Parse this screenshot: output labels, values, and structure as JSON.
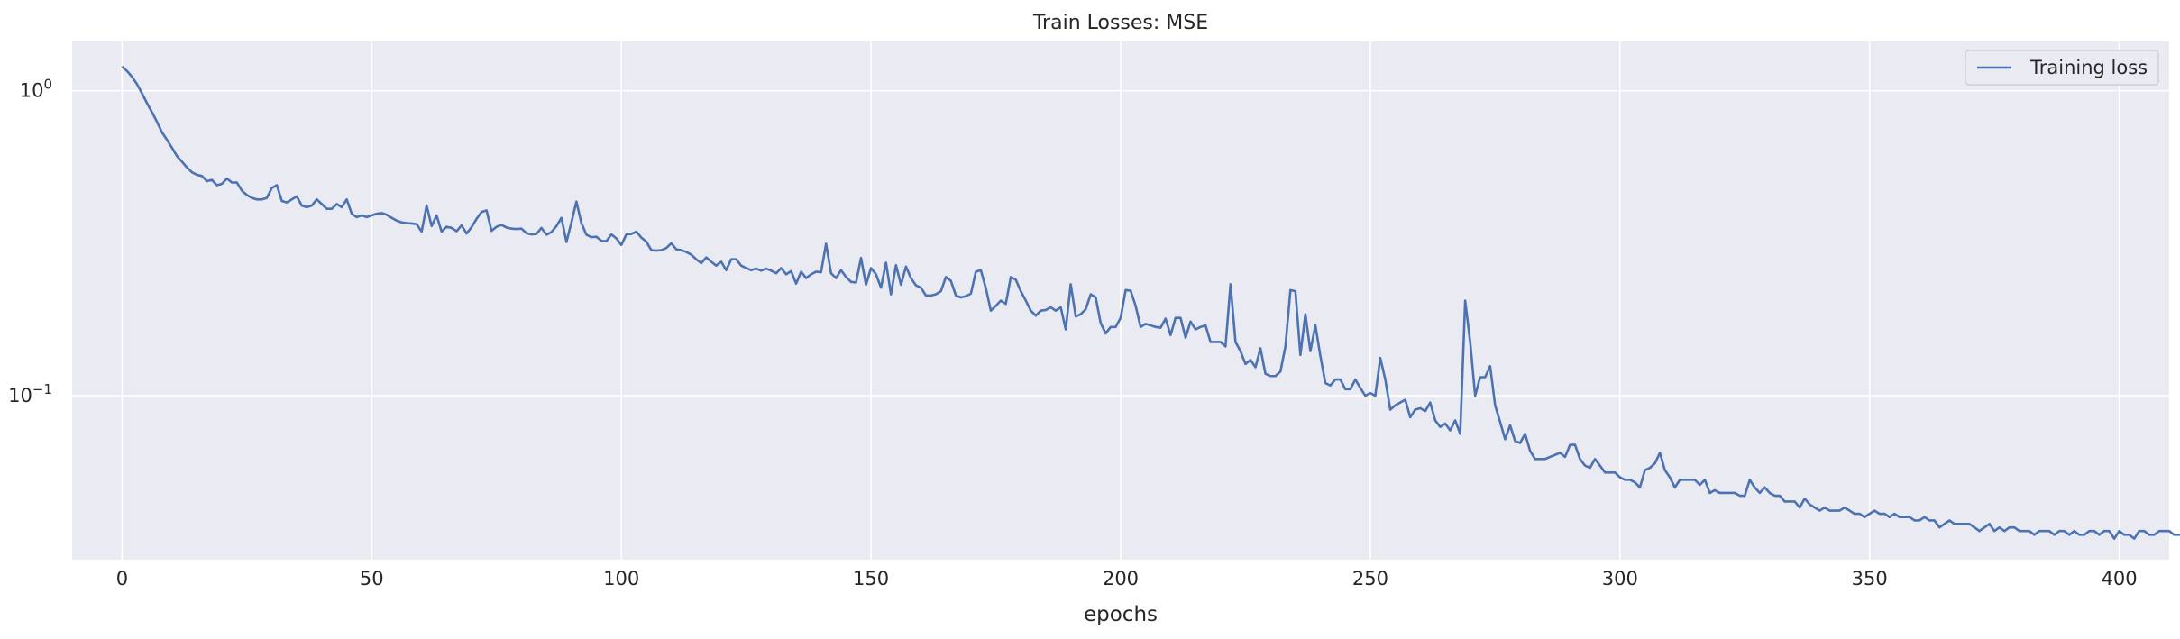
{
  "chart_data": {
    "type": "line",
    "title": "Train Losses:  MSE",
    "xlabel": "epochs",
    "ylabel": "",
    "xlim": [
      -10,
      410
    ],
    "ylim": [
      0.029,
      1.45
    ],
    "yscale": "log",
    "grid": true,
    "legend_position": "top-right",
    "x_ticks": [
      0,
      50,
      100,
      150,
      200,
      250,
      300,
      350,
      400
    ],
    "x_tick_labels": [
      "0",
      "50",
      "100",
      "150",
      "200",
      "250",
      "300",
      "350",
      "400"
    ],
    "y_ticks": [
      1,
      0.1
    ],
    "y_tick_labels": [
      {
        "base": "10",
        "exp": "0"
      },
      {
        "base": "10",
        "exp": "−1"
      }
    ],
    "colors": {
      "background": "#eaeaf2",
      "grid": "#ffffff",
      "line": "#4c72b0",
      "text": "#262626"
    },
    "series": [
      {
        "name": "Training loss",
        "x_start": 0,
        "x_step": 1,
        "values": [
          1.2,
          1.16,
          1.11,
          1.05,
          0.98,
          0.91,
          0.85,
          0.79,
          0.73,
          0.69,
          0.65,
          0.61,
          0.585,
          0.56,
          0.54,
          0.53,
          0.525,
          0.505,
          0.51,
          0.49,
          0.495,
          0.515,
          0.5,
          0.5,
          0.47,
          0.455,
          0.445,
          0.44,
          0.44,
          0.445,
          0.48,
          0.49,
          0.435,
          0.43,
          0.44,
          0.45,
          0.42,
          0.415,
          0.42,
          0.44,
          0.425,
          0.41,
          0.41,
          0.425,
          0.415,
          0.44,
          0.395,
          0.385,
          0.39,
          0.385,
          0.39,
          0.395,
          0.397,
          0.392,
          0.383,
          0.375,
          0.37,
          0.368,
          0.367,
          0.365,
          0.345,
          0.42,
          0.36,
          0.39,
          0.345,
          0.358,
          0.355,
          0.346,
          0.362,
          0.34,
          0.357,
          0.38,
          0.4,
          0.405,
          0.347,
          0.358,
          0.363,
          0.356,
          0.353,
          0.352,
          0.353,
          0.341,
          0.338,
          0.339,
          0.355,
          0.337,
          0.344,
          0.36,
          0.383,
          0.319,
          0.37,
          0.433,
          0.368,
          0.337,
          0.331,
          0.332,
          0.322,
          0.321,
          0.338,
          0.328,
          0.312,
          0.338,
          0.339,
          0.345,
          0.33,
          0.32,
          0.3,
          0.299,
          0.3,
          0.305,
          0.316,
          0.302,
          0.3,
          0.296,
          0.29,
          0.28,
          0.272,
          0.284,
          0.275,
          0.267,
          0.275,
          0.258,
          0.28,
          0.28,
          0.267,
          0.262,
          0.258,
          0.261,
          0.257,
          0.261,
          0.257,
          0.252,
          0.262,
          0.25,
          0.256,
          0.233,
          0.255,
          0.243,
          0.25,
          0.255,
          0.254,
          0.315,
          0.252,
          0.243,
          0.258,
          0.245,
          0.236,
          0.235,
          0.283,
          0.231,
          0.262,
          0.25,
          0.226,
          0.273,
          0.215,
          0.268,
          0.231,
          0.265,
          0.243,
          0.23,
          0.226,
          0.213,
          0.213,
          0.215,
          0.22,
          0.245,
          0.238,
          0.213,
          0.21,
          0.212,
          0.216,
          0.255,
          0.258,
          0.225,
          0.19,
          0.197,
          0.205,
          0.2,
          0.245,
          0.24,
          0.22,
          0.205,
          0.19,
          0.183,
          0.19,
          0.191,
          0.195,
          0.19,
          0.195,
          0.165,
          0.232,
          0.182,
          0.185,
          0.192,
          0.215,
          0.21,
          0.173,
          0.16,
          0.168,
          0.168,
          0.18,
          0.222,
          0.221,
          0.197,
          0.168,
          0.172,
          0.17,
          0.168,
          0.167,
          0.179,
          0.158,
          0.18,
          0.18,
          0.155,
          0.175,
          0.165,
          0.168,
          0.17,
          0.15,
          0.15,
          0.15,
          0.145,
          0.232,
          0.15,
          0.14,
          0.127,
          0.131,
          0.124,
          0.143,
          0.118,
          0.116,
          0.116,
          0.12,
          0.145,
          0.222,
          0.22,
          0.136,
          0.185,
          0.14,
          0.17,
          0.135,
          0.11,
          0.108,
          0.113,
          0.113,
          0.105,
          0.105,
          0.113,
          0.106,
          0.1,
          0.102,
          0.1,
          0.133,
          0.113,
          0.09,
          0.093,
          0.095,
          0.097,
          0.085,
          0.09,
          0.091,
          0.089,
          0.095,
          0.083,
          0.079,
          0.081,
          0.077,
          0.083,
          0.075,
          0.205,
          0.15,
          0.1,
          0.115,
          0.115,
          0.125,
          0.093,
          0.082,
          0.072,
          0.08,
          0.071,
          0.07,
          0.075,
          0.066,
          0.062,
          0.062,
          0.062,
          0.063,
          0.064,
          0.065,
          0.063,
          0.069,
          0.069,
          0.062,
          0.059,
          0.058,
          0.062,
          0.059,
          0.056,
          0.056,
          0.056,
          0.054,
          0.053,
          0.053,
          0.052,
          0.05,
          0.057,
          0.058,
          0.06,
          0.065,
          0.057,
          0.054,
          0.05,
          0.053,
          0.053,
          0.053,
          0.053,
          0.051,
          0.053,
          0.048,
          0.049,
          0.048,
          0.048,
          0.048,
          0.048,
          0.047,
          0.047,
          0.053,
          0.05,
          0.048,
          0.05,
          0.048,
          0.047,
          0.047,
          0.045,
          0.045,
          0.045,
          0.043,
          0.046,
          0.044,
          0.043,
          0.042,
          0.043,
          0.042,
          0.042,
          0.042,
          0.043,
          0.042,
          0.041,
          0.041,
          0.04,
          0.041,
          0.042,
          0.041,
          0.041,
          0.04,
          0.041,
          0.04,
          0.04,
          0.04,
          0.039,
          0.039,
          0.04,
          0.039,
          0.039,
          0.037,
          0.038,
          0.039,
          0.038,
          0.038,
          0.038,
          0.038,
          0.037,
          0.036,
          0.037,
          0.038,
          0.036,
          0.037,
          0.036,
          0.037,
          0.037,
          0.036,
          0.036,
          0.036,
          0.035,
          0.036,
          0.036,
          0.036,
          0.035,
          0.036,
          0.036,
          0.035,
          0.036,
          0.035,
          0.035,
          0.036,
          0.036,
          0.035,
          0.036,
          0.036,
          0.034,
          0.036,
          0.035,
          0.035,
          0.034,
          0.036,
          0.036,
          0.035,
          0.035,
          0.036,
          0.036,
          0.036,
          0.035,
          0.035,
          0.035
        ]
      }
    ]
  }
}
